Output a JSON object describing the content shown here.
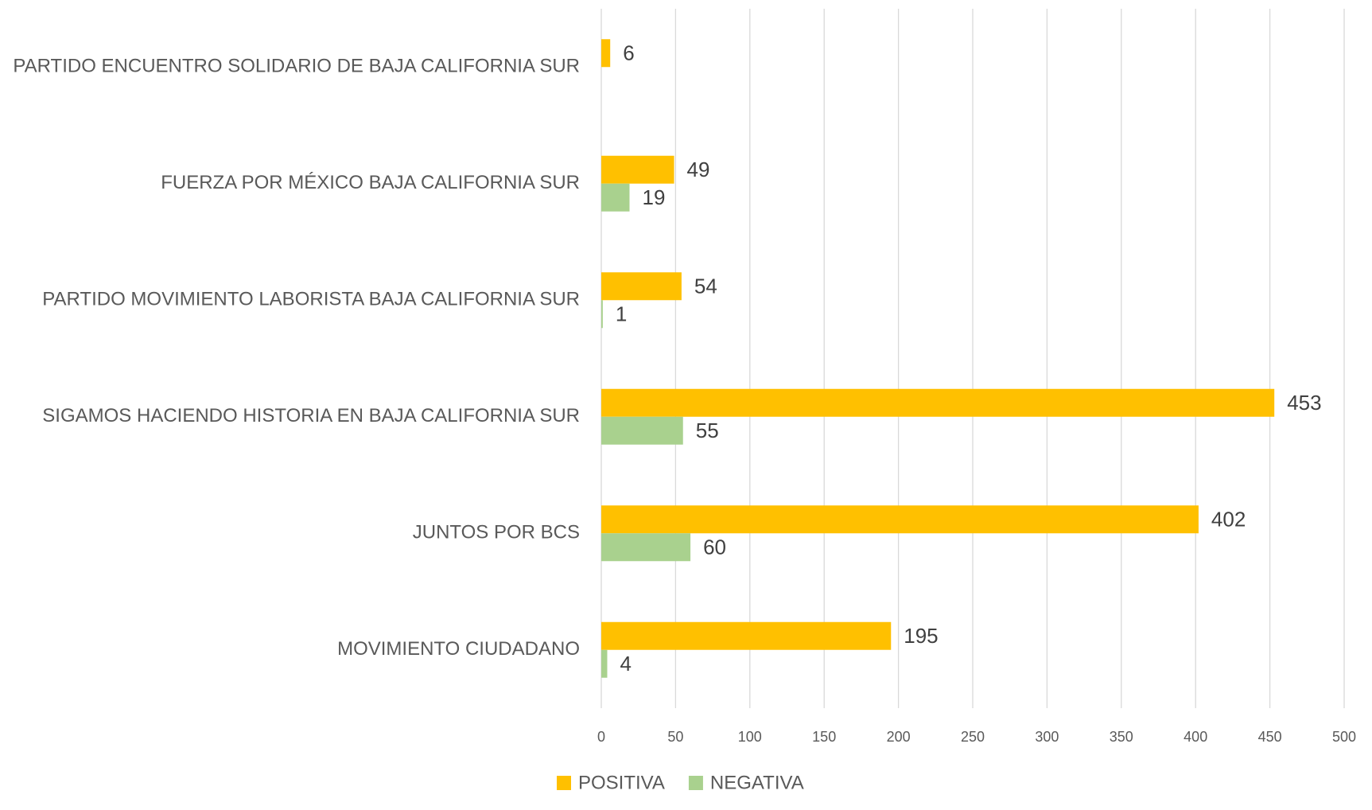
{
  "chart_data": {
    "type": "bar",
    "orientation": "horizontal",
    "categories": [
      "PARTIDO ENCUENTRO SOLIDARIO DE BAJA CALIFORNIA SUR",
      "FUERZA POR MÉXICO BAJA CALIFORNIA SUR",
      "PARTIDO MOVIMIENTO LABORISTA BAJA CALIFORNIA SUR",
      "SIGAMOS HACIENDO HISTORIA EN BAJA CALIFORNIA SUR",
      "JUNTOS POR BCS",
      "MOVIMIENTO CIUDADANO"
    ],
    "series": [
      {
        "name": "POSITIVA",
        "color": "#ffc000",
        "values": [
          6,
          49,
          54,
          453,
          402,
          195
        ]
      },
      {
        "name": "NEGATIVA",
        "color": "#a9d18e",
        "values": [
          null,
          19,
          1,
          55,
          60,
          4
        ]
      }
    ],
    "xlim": [
      0,
      500
    ],
    "xticks": [
      0,
      50,
      100,
      150,
      200,
      250,
      300,
      350,
      400,
      450,
      500
    ],
    "grid": true,
    "legend": "bottom"
  }
}
